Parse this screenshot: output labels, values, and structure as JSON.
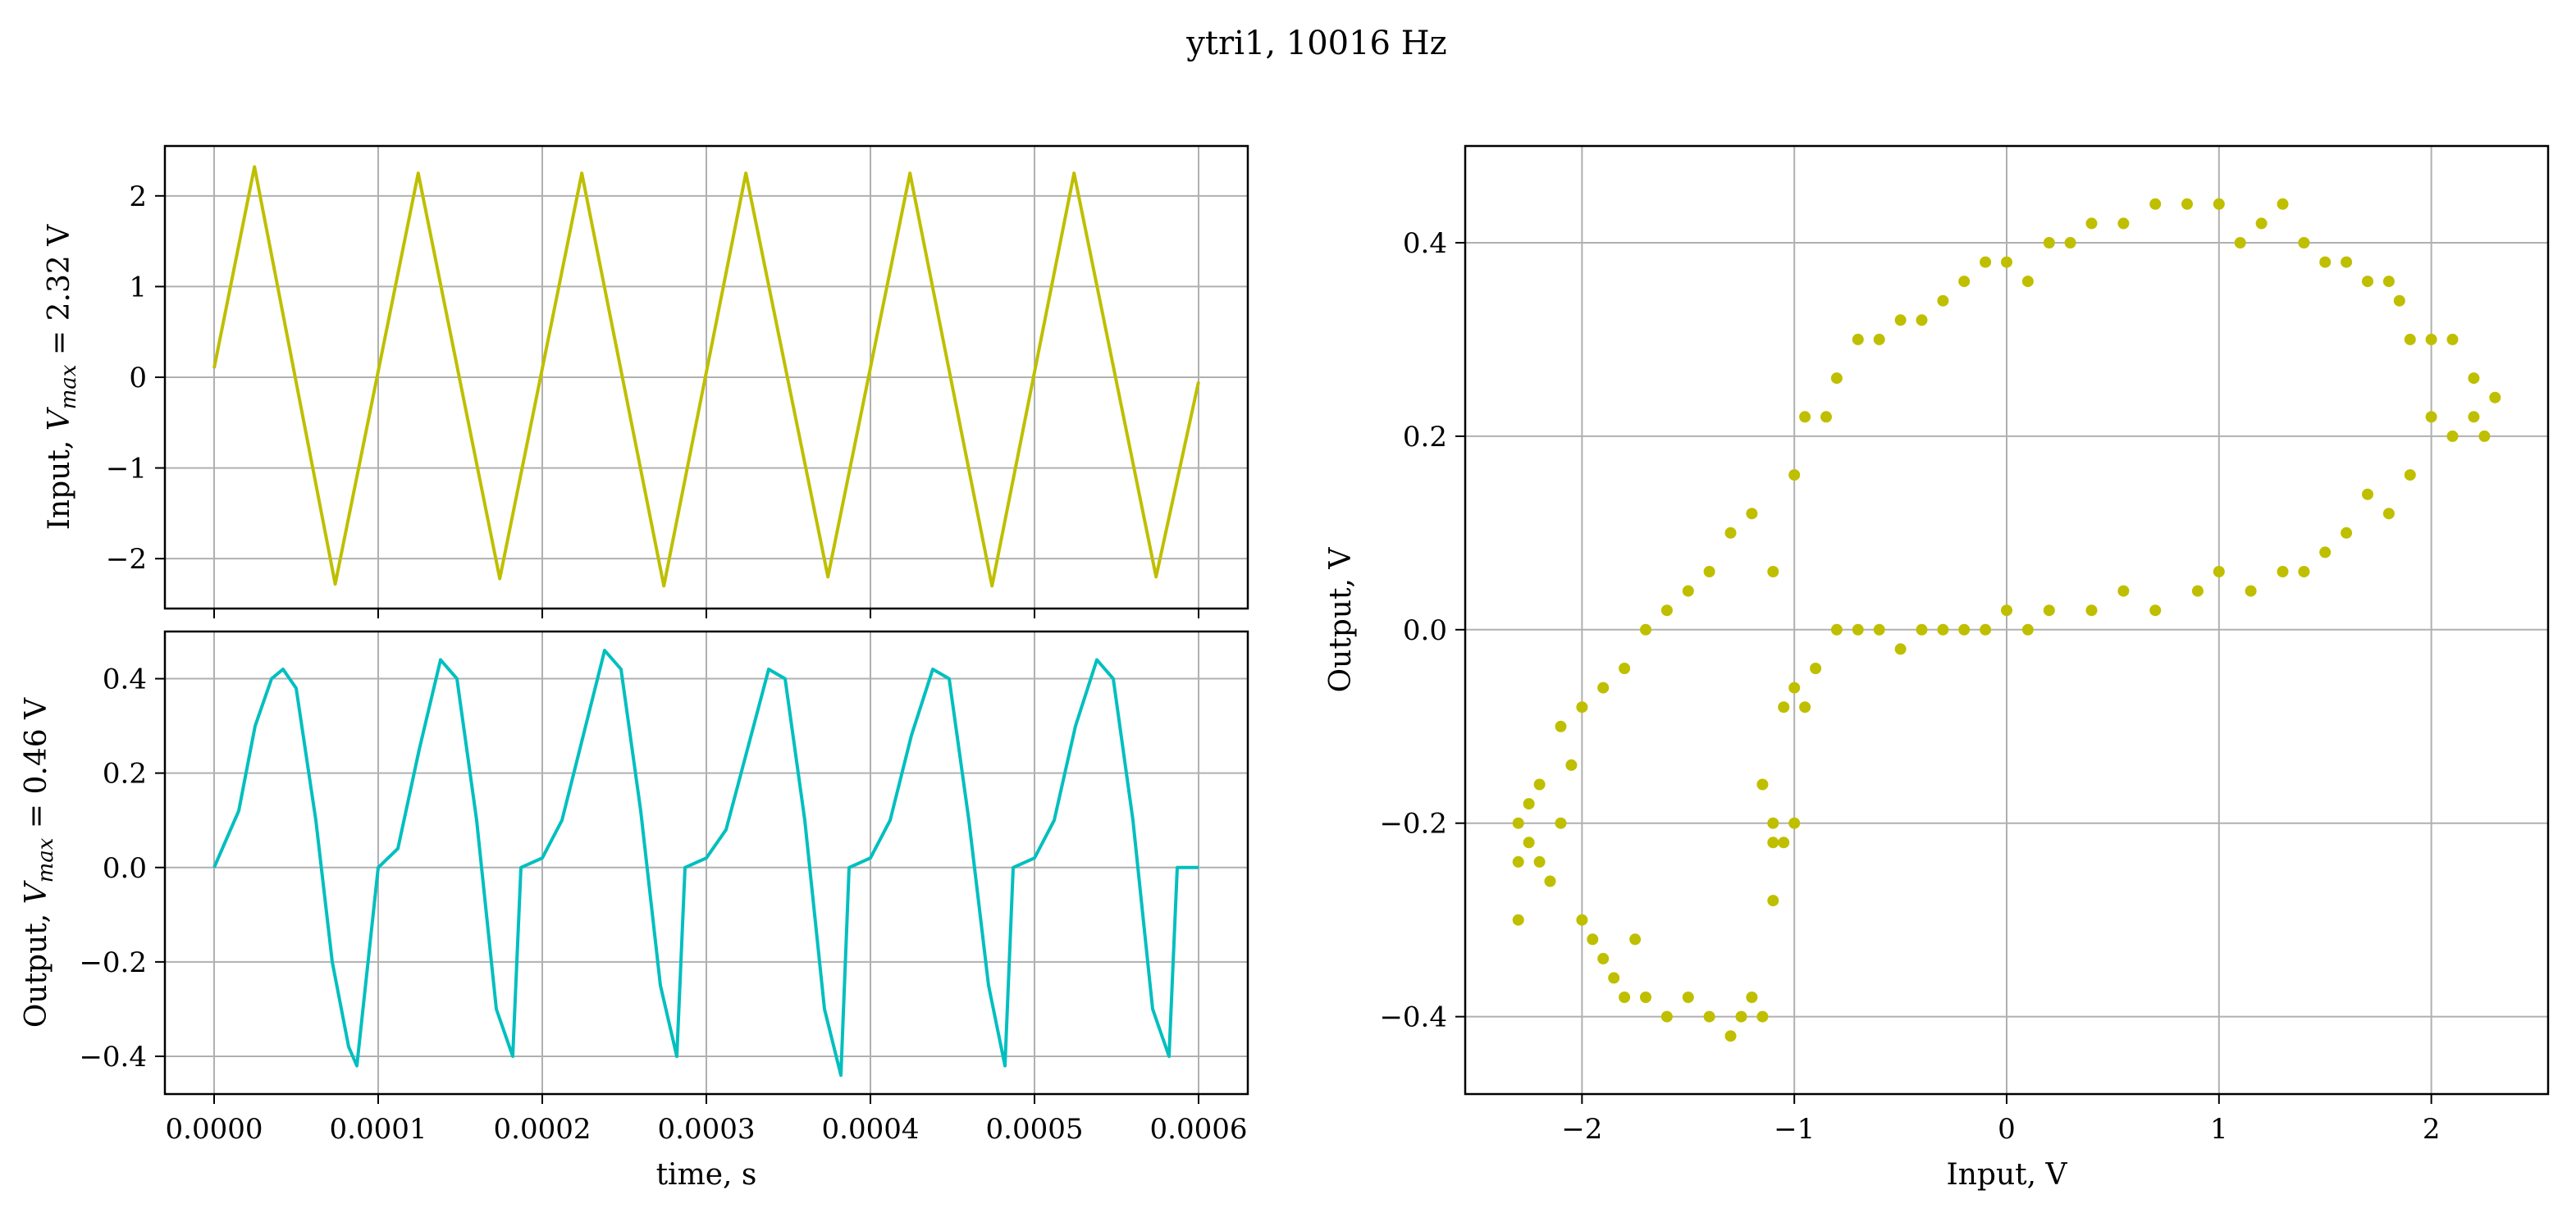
{
  "title": "ytri1, 10016 Hz",
  "colors": {
    "input": "#bfbf00",
    "output": "#00bfbf",
    "grid": "#b0b0b0"
  },
  "chart_data": [
    {
      "type": "line",
      "panel": "input-time",
      "ylabel_prefix": "Input, ",
      "ylabel_math": "V",
      "ylabel_sub": "max",
      "ylabel_suffix": " = 2.32 V",
      "xlim": [
        -3e-05,
        0.00063
      ],
      "ylim": [
        -2.55,
        2.55
      ],
      "xticks": [
        0,
        0.0001,
        0.0002,
        0.0003,
        0.0004,
        0.0005,
        0.0006
      ],
      "yticks": [
        2,
        1,
        0,
        -1,
        -2
      ],
      "ytick_labels": [
        "2",
        "1",
        "0",
        "−1",
        "−2"
      ],
      "grid": true,
      "series": [
        {
          "x": [
            0.0,
            2.46e-05,
            7.38e-05,
            0.0001244,
            0.0001741,
            0.0002241,
            0.0002741,
            0.0003241,
            0.0003741,
            0.0004241,
            0.0004741,
            0.0005241,
            0.0005741,
            0.0006
          ],
          "values": [
            0.1,
            2.32,
            -2.28,
            2.25,
            -2.22,
            2.25,
            -2.3,
            2.25,
            -2.2,
            2.25,
            -2.3,
            2.25,
            -2.2,
            -0.05
          ]
        }
      ]
    },
    {
      "type": "line",
      "panel": "output-time",
      "ylabel_prefix": "Output, ",
      "ylabel_math": "V",
      "ylabel_sub": "max",
      "ylabel_suffix": " = 0.46 V",
      "xlabel": "time, s",
      "xlim": [
        -3e-05,
        0.00063
      ],
      "ylim": [
        -0.48,
        0.5
      ],
      "xticks": [
        0,
        0.0001,
        0.0002,
        0.0003,
        0.0004,
        0.0005,
        0.0006
      ],
      "xtick_labels": [
        "0.0000",
        "0.0001",
        "0.0002",
        "0.0003",
        "0.0004",
        "0.0005",
        "0.0006"
      ],
      "yticks": [
        0.4,
        0.2,
        0.0,
        -0.2,
        -0.4
      ],
      "ytick_labels": [
        "0.4",
        "0.2",
        "0.0",
        "−0.2",
        "−0.4"
      ],
      "grid": true,
      "series": [
        {
          "x": [
            0.0,
            5e-06,
            1.5e-05,
            2.5e-05,
            3.5e-05,
            4.2e-05,
            5e-05,
            6.2e-05,
            7.2e-05,
            8.2e-05,
            8.7e-05,
            0.0001,
            0.000112,
            0.000125,
            0.000138,
            0.000148,
            0.00016,
            0.000172,
            0.000182,
            0.000187,
            0.0002,
            0.000212,
            0.000225,
            0.000238,
            0.000248,
            0.00026,
            0.000272,
            0.000282,
            0.000287,
            0.0003,
            0.000312,
            0.000325,
            0.000338,
            0.000348,
            0.00036,
            0.000372,
            0.000382,
            0.000387,
            0.0004,
            0.000412,
            0.000425,
            0.000438,
            0.000448,
            0.00046,
            0.000472,
            0.000482,
            0.000487,
            0.0005,
            0.000512,
            0.000525,
            0.000538,
            0.000548,
            0.00056,
            0.000572,
            0.000582,
            0.000587,
            0.0006
          ],
          "values": [
            0.0,
            0.04,
            0.12,
            0.3,
            0.4,
            0.42,
            0.38,
            0.1,
            -0.2,
            -0.38,
            -0.42,
            0.0,
            0.04,
            0.25,
            0.44,
            0.4,
            0.1,
            -0.3,
            -0.4,
            0.0,
            0.02,
            0.1,
            0.28,
            0.46,
            0.42,
            0.12,
            -0.25,
            -0.4,
            0.0,
            0.02,
            0.08,
            0.25,
            0.42,
            0.4,
            0.1,
            -0.3,
            -0.44,
            0.0,
            0.02,
            0.1,
            0.28,
            0.42,
            0.4,
            0.1,
            -0.25,
            -0.42,
            0.0,
            0.02,
            0.1,
            0.3,
            0.44,
            0.4,
            0.1,
            -0.3,
            -0.4,
            0.0,
            0.0
          ]
        }
      ]
    },
    {
      "type": "scatter",
      "panel": "transfer",
      "xlabel": "Input, V",
      "ylabel": "Output, V",
      "xlim": [
        -2.55,
        2.55
      ],
      "ylim": [
        -0.48,
        0.5
      ],
      "xticks": [
        -2,
        -1,
        0,
        1,
        2
      ],
      "xtick_labels": [
        "−2",
        "−1",
        "0",
        "1",
        "2"
      ],
      "yticks": [
        0.4,
        0.2,
        0.0,
        -0.2,
        -0.4
      ],
      "ytick_labels": [
        "0.4",
        "0.2",
        "0.0",
        "−0.2",
        "−0.4"
      ],
      "grid": true,
      "series": [
        {
          "x": [
            -2.3,
            -2.3,
            -2.3,
            -2.25,
            -2.25,
            -2.2,
            -2.15,
            -2.1,
            -2.05,
            -2.0,
            -1.95,
            -1.9,
            -1.85,
            -1.8,
            -1.75,
            -1.7,
            -1.6,
            -1.5,
            -1.4,
            -1.3,
            -1.25,
            -1.2,
            -1.15,
            -1.1,
            -1.1,
            -1.15,
            -1.1,
            -1.0,
            -0.95,
            -0.85,
            -0.8,
            -0.7,
            -0.6,
            -0.5,
            -0.4,
            -0.3,
            -0.2,
            -0.1,
            0.0,
            0.1,
            0.2,
            0.3,
            0.4,
            0.55,
            0.7,
            0.85,
            1.0,
            1.1,
            1.2,
            1.3,
            1.4,
            1.5,
            1.6,
            1.7,
            1.8,
            1.85,
            1.9,
            2.0,
            2.1,
            2.2,
            2.3,
            2.25,
            2.2,
            2.1,
            2.0,
            1.9,
            1.8,
            1.7,
            1.6,
            1.5,
            1.4,
            1.3,
            1.15,
            1.0,
            0.9,
            0.7,
            0.55,
            0.4,
            0.2,
            0.1,
            0.0,
            -0.1,
            -0.2,
            -0.3,
            -0.4,
            -0.5,
            -0.6,
            -0.7,
            -0.8,
            -0.9,
            -1.0,
            -1.05,
            -1.1,
            -1.2,
            -1.3,
            -1.4,
            -1.5,
            -1.6,
            -1.7,
            -1.8,
            -1.9,
            -2.0,
            -2.1,
            -2.2,
            -1.05,
            -1.0,
            -0.95
          ],
          "values": [
            -0.3,
            -0.2,
            -0.24,
            -0.22,
            -0.18,
            -0.24,
            -0.26,
            -0.2,
            -0.14,
            -0.3,
            -0.32,
            -0.34,
            -0.36,
            -0.38,
            -0.32,
            -0.38,
            -0.4,
            -0.38,
            -0.4,
            -0.42,
            -0.4,
            -0.38,
            -0.4,
            -0.28,
            -0.22,
            -0.16,
            -0.2,
            0.16,
            0.22,
            0.22,
            0.26,
            0.3,
            0.3,
            0.32,
            0.32,
            0.34,
            0.36,
            0.38,
            0.38,
            0.36,
            0.4,
            0.4,
            0.42,
            0.42,
            0.44,
            0.44,
            0.44,
            0.4,
            0.42,
            0.44,
            0.4,
            0.38,
            0.38,
            0.36,
            0.36,
            0.34,
            0.3,
            0.3,
            0.3,
            0.26,
            0.24,
            0.2,
            0.22,
            0.2,
            0.22,
            0.16,
            0.12,
            0.14,
            0.1,
            0.08,
            0.06,
            0.06,
            0.04,
            0.06,
            0.04,
            0.02,
            0.04,
            0.02,
            0.02,
            0.0,
            0.02,
            0.0,
            0.0,
            0.0,
            0.0,
            -0.02,
            0.0,
            0.0,
            0.0,
            -0.04,
            -0.06,
            -0.08,
            0.06,
            0.12,
            0.1,
            0.06,
            0.04,
            0.02,
            0.0,
            -0.04,
            -0.06,
            -0.08,
            -0.1,
            -0.16,
            -0.22,
            -0.2,
            -0.08
          ]
        }
      ]
    }
  ]
}
